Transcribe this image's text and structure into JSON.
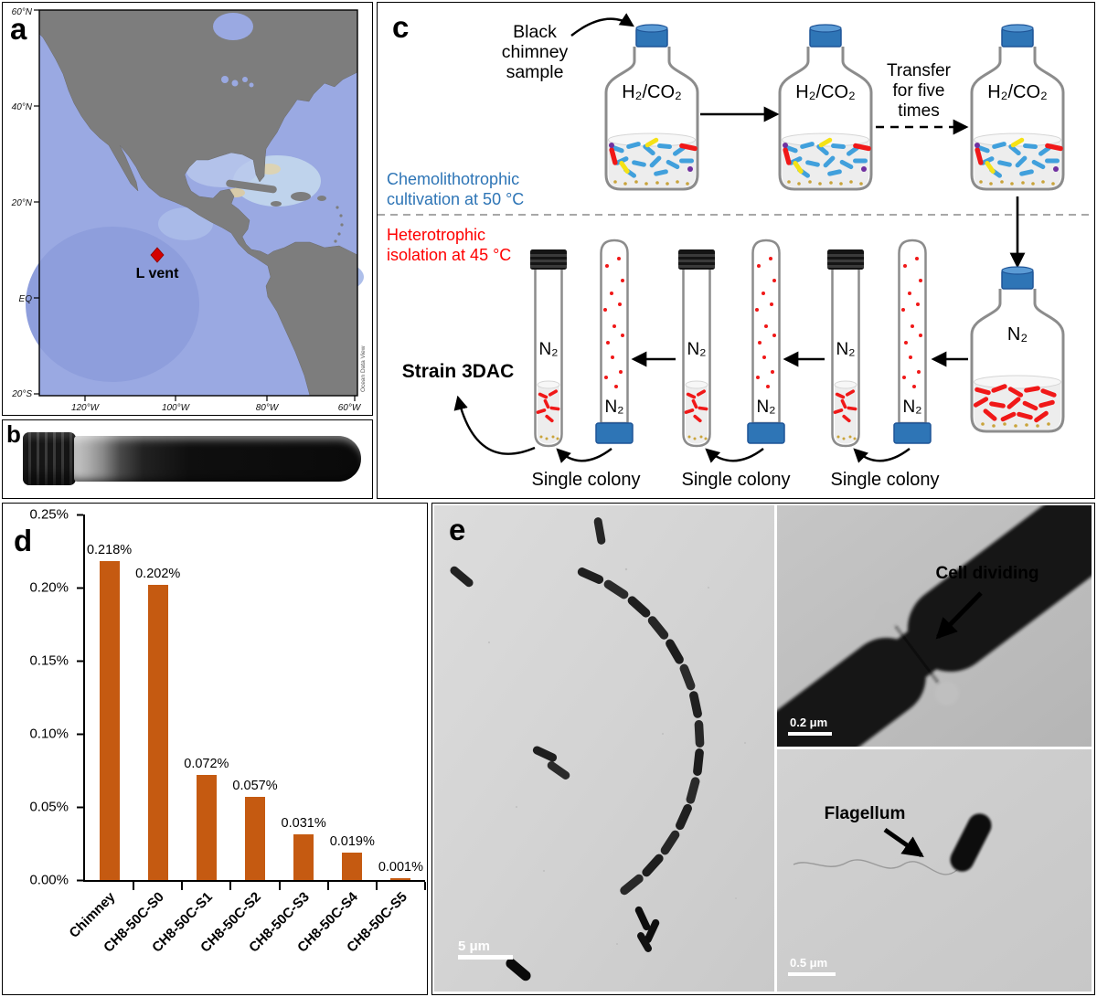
{
  "panels": {
    "a": {
      "label": "a",
      "marker_label": "L vent",
      "lat_ticks": [
        "60°N",
        "40°N",
        "20°N",
        "EQ",
        "20°S"
      ],
      "lon_ticks": [
        "120°W",
        "100°W",
        "80°W",
        "60°W"
      ],
      "credit": "Ocean Data View",
      "colors": {
        "ocean": "#9AA9E2",
        "land": "#7D7D7D",
        "marker": "#D40000"
      }
    },
    "b": {
      "label": "b"
    },
    "c": {
      "label": "c",
      "sample_lines": [
        "Black",
        "chimney",
        "sample"
      ],
      "gas_top": "H₂/CO₂",
      "gas_n2": "N₂",
      "transfer_lines": [
        "Transfer",
        "for five",
        "times"
      ],
      "chemo_lines": [
        "Chemolithotrophic",
        "cultivation at 50 °C"
      ],
      "hetero_lines": [
        "Heterotrophic",
        "isolation at 45 °C"
      ],
      "strain_label": "Strain 3DAC",
      "single_colony": "Single colony",
      "colors": {
        "chemo_text": "#2E75B6",
        "hetero_text": "#FF0000",
        "cap_blue": "#2E75B6",
        "cap_black": "#141414",
        "cell_blue": "#41A0DC",
        "cell_red": "#F01818",
        "cell_yellow": "#F5E216",
        "cell_purple": "#7030A0",
        "sediment_gold": "#C9A43B"
      }
    },
    "d": {
      "label": "d"
    },
    "e": {
      "label": "e",
      "annotation_cell_dividing": "Cell dividing",
      "annotation_flagellum": "Flagellum",
      "scalebar_main": "5 μm",
      "scalebar_top": "0.2 μm",
      "scalebar_bottom": "0.5 μm"
    }
  },
  "chart_data": {
    "type": "bar",
    "categories": [
      "Chimney",
      "CH8-50C-S0",
      "CH8-50C-S1",
      "CH8-50C-S2",
      "CH8-50C-S3",
      "CH8-50C-S4",
      "CH8-50C-S5"
    ],
    "values": [
      0.218,
      0.202,
      0.072,
      0.057,
      0.031,
      0.019,
      0.001
    ],
    "data_labels": [
      "0.218%",
      "0.202%",
      "0.072%",
      "0.057%",
      "0.031%",
      "0.019%",
      "0.001%"
    ],
    "y_ticks": [
      "0.25%",
      "0.20%",
      "0.15%",
      "0.10%",
      "0.05%",
      "0.00%"
    ],
    "ylim": [
      0,
      0.25
    ],
    "unit": "%",
    "bar_color": "#C55A11",
    "title": "",
    "xlabel": "",
    "ylabel": "",
    "grid": false,
    "legend": false
  }
}
